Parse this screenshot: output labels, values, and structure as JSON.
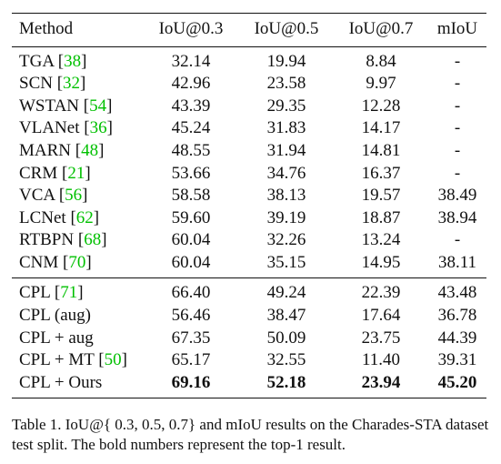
{
  "table": {
    "headers": [
      "Method",
      "IoU@0.3",
      "IoU@0.5",
      "IoU@0.7",
      "mIoU"
    ],
    "groups": [
      {
        "rows": [
          {
            "method": "TGA",
            "ref": "38",
            "values": [
              "32.14",
              "19.94",
              "8.84",
              "-"
            ]
          },
          {
            "method": "SCN",
            "ref": "32",
            "values": [
              "42.96",
              "23.58",
              "9.97",
              "-"
            ]
          },
          {
            "method": "WSTAN",
            "ref": "54",
            "values": [
              "43.39",
              "29.35",
              "12.28",
              "-"
            ]
          },
          {
            "method": "VLANet",
            "ref": "36",
            "values": [
              "45.24",
              "31.83",
              "14.17",
              "-"
            ]
          },
          {
            "method": "MARN",
            "ref": "48",
            "values": [
              "48.55",
              "31.94",
              "14.81",
              "-"
            ]
          },
          {
            "method": "CRM",
            "ref": "21",
            "values": [
              "53.66",
              "34.76",
              "16.37",
              "-"
            ]
          },
          {
            "method": "VCA",
            "ref": "56",
            "values": [
              "58.58",
              "38.13",
              "19.57",
              "38.49"
            ]
          },
          {
            "method": "LCNet",
            "ref": "62",
            "values": [
              "59.60",
              "39.19",
              "18.87",
              "38.94"
            ]
          },
          {
            "method": "RTBPN",
            "ref": "68",
            "values": [
              "60.04",
              "32.26",
              "13.24",
              "-"
            ]
          },
          {
            "method": "CNM",
            "ref": "70",
            "values": [
              "60.04",
              "35.15",
              "14.95",
              "38.11"
            ]
          }
        ]
      },
      {
        "rows": [
          {
            "method": "CPL",
            "ref": "71",
            "values": [
              "66.40",
              "49.24",
              "22.39",
              "43.48"
            ]
          },
          {
            "method": "CPL (aug)",
            "ref": "",
            "values": [
              "56.46",
              "38.47",
              "17.64",
              "36.78"
            ]
          },
          {
            "method": "CPL + aug",
            "ref": "",
            "values": [
              "67.35",
              "50.09",
              "23.75",
              "44.39"
            ]
          },
          {
            "method": "CPL + MT",
            "ref": "50",
            "values": [
              "65.17",
              "32.55",
              "11.40",
              "39.31"
            ]
          },
          {
            "method": "CPL + Ours",
            "ref": "",
            "values": [
              "69.16",
              "52.18",
              "23.94",
              "45.20"
            ],
            "bold": true
          }
        ]
      }
    ]
  },
  "caption": "Table 1. IoU@{ 0.3, 0.5, 0.7} and mIoU results on the Charades-STA dataset test split. The bold numbers represent the top-1 result.",
  "colors": {
    "citation": "#00c000",
    "text": "#111111",
    "rule": "#111111"
  }
}
